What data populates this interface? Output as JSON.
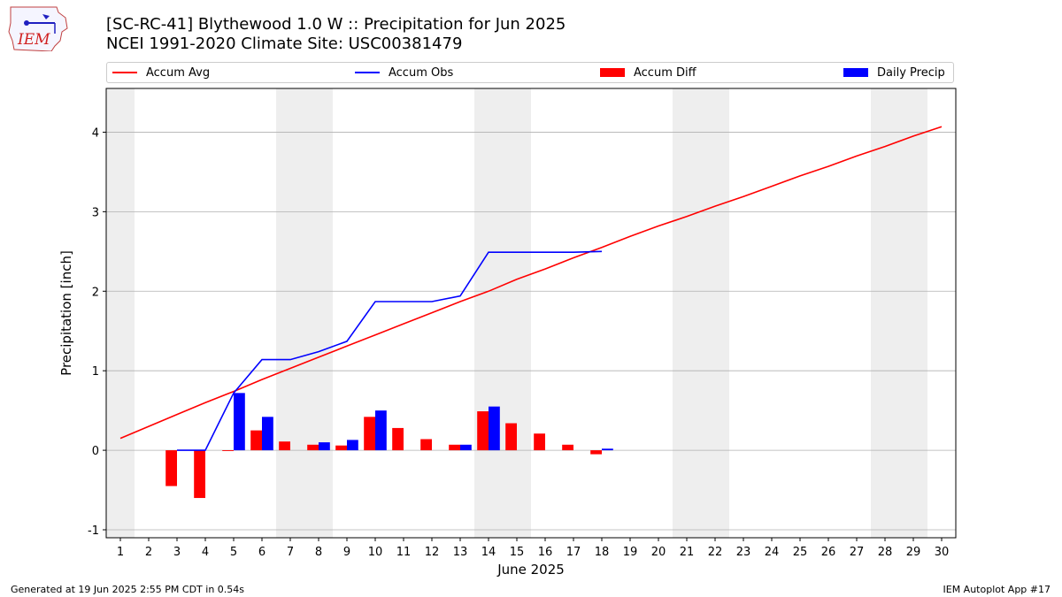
{
  "header": {
    "title_line1": "[SC-RC-41] Blythewood 1.0 W :: Precipitation for Jun 2025",
    "title_line2": "NCEI 1991-2020 Climate Site: USC00381479"
  },
  "logo": {
    "text": "IEM"
  },
  "footer": {
    "left": "Generated at 19 Jun 2025 2:55 PM CDT in 0.54s",
    "right": "IEM Autoplot App #17"
  },
  "colors": {
    "avg": "#ff0000",
    "obs": "#0000ff",
    "diff": "#ff0000",
    "daily": "#0000ff",
    "weekend_shade": "#eeeeee",
    "grid": "#b0b0b0"
  },
  "chart_data": {
    "type": "bar",
    "xlabel": "June 2025",
    "ylabel": "Precipitation [inch]",
    "xlim": [
      0.5,
      30.5
    ],
    "ylim": [
      -1.1,
      4.55
    ],
    "yticks": [
      -1,
      0,
      1,
      2,
      3,
      4
    ],
    "xticks": [
      1,
      2,
      3,
      4,
      5,
      6,
      7,
      8,
      9,
      10,
      11,
      12,
      13,
      14,
      15,
      16,
      17,
      18,
      19,
      20,
      21,
      22,
      23,
      24,
      25,
      26,
      27,
      28,
      29,
      30
    ],
    "grid": "horizontal",
    "legend_position": "top",
    "weekend_spans": [
      [
        0.5,
        1.5
      ],
      [
        6.5,
        8.5
      ],
      [
        13.5,
        15.5
      ],
      [
        20.5,
        22.5
      ],
      [
        27.5,
        29.5
      ]
    ],
    "legend": [
      "Accum Avg",
      "Accum Obs",
      "Accum Diff",
      "Daily Precip"
    ],
    "series": [
      {
        "name": "Accum Avg",
        "kind": "line",
        "days": [
          1,
          2,
          3,
          4,
          5,
          6,
          7,
          8,
          9,
          10,
          11,
          12,
          13,
          14,
          15,
          16,
          17,
          18,
          19,
          20,
          21,
          22,
          23,
          24,
          25,
          26,
          27,
          28,
          29,
          30
        ],
        "values": [
          0.15,
          0.3,
          0.45,
          0.6,
          0.74,
          0.89,
          1.03,
          1.17,
          1.31,
          1.45,
          1.59,
          1.73,
          1.87,
          2.0,
          2.15,
          2.28,
          2.42,
          2.55,
          2.69,
          2.82,
          2.94,
          3.07,
          3.19,
          3.32,
          3.45,
          3.57,
          3.7,
          3.82,
          3.95,
          4.07
        ]
      },
      {
        "name": "Accum Obs",
        "kind": "line",
        "days": [
          3,
          4,
          5,
          6,
          7,
          8,
          9,
          10,
          11,
          12,
          13,
          14,
          15,
          16,
          17,
          18
        ],
        "values": [
          0.0,
          0.0,
          0.72,
          1.14,
          1.14,
          1.24,
          1.37,
          1.87,
          1.87,
          1.87,
          1.94,
          2.49,
          2.49,
          2.49,
          2.49,
          2.5
        ]
      },
      {
        "name": "Accum Diff",
        "kind": "bar",
        "days": [
          3,
          4,
          5,
          6,
          7,
          8,
          9,
          10,
          11,
          12,
          13,
          14,
          15,
          16,
          17,
          18
        ],
        "values": [
          -0.45,
          -0.6,
          -0.01,
          0.25,
          0.11,
          0.07,
          0.06,
          0.42,
          0.28,
          0.14,
          0.07,
          0.49,
          0.34,
          0.21,
          0.07,
          -0.05
        ]
      },
      {
        "name": "Daily Precip",
        "kind": "bar",
        "days": [
          3,
          4,
          5,
          6,
          7,
          8,
          9,
          10,
          11,
          12,
          13,
          14,
          15,
          16,
          17,
          18
        ],
        "values": [
          0.0,
          0.0,
          0.72,
          0.42,
          0.0,
          0.1,
          0.13,
          0.5,
          0.0,
          0.0,
          0.07,
          0.55,
          0.0,
          0.0,
          0.0,
          0.02
        ]
      }
    ]
  }
}
